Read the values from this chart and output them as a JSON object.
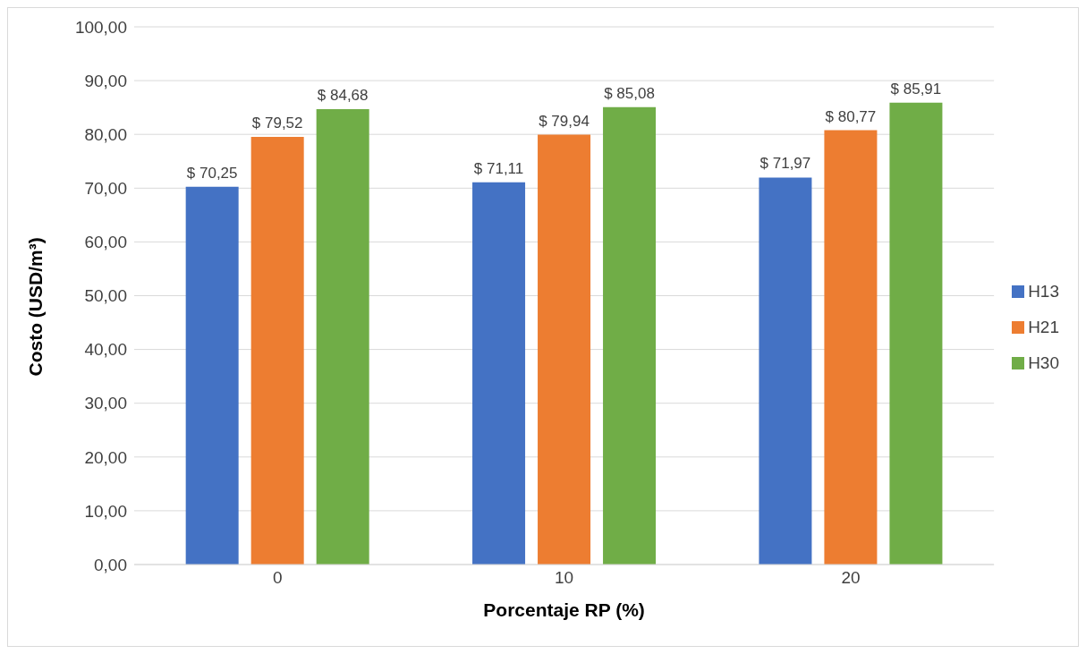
{
  "chart_data": {
    "type": "bar",
    "xlabel": "Porcentaje RP (%)",
    "ylabel": "Costo  (USD/m³)",
    "categories": [
      "0",
      "10",
      "20"
    ],
    "series": [
      {
        "name": "H13",
        "color": "#4472c4",
        "values": [
          70.25,
          71.11,
          71.97
        ],
        "value_labels": [
          "$ 70,25",
          "$ 71,11",
          "$ 71,97"
        ]
      },
      {
        "name": "H21",
        "color": "#ed7d31",
        "values": [
          79.52,
          79.94,
          80.77
        ],
        "value_labels": [
          "$ 79,52",
          "$ 79,94",
          "$ 80,77"
        ]
      },
      {
        "name": "H30",
        "color": "#70ad47",
        "values": [
          84.68,
          85.08,
          85.91
        ],
        "value_labels": [
          "$ 84,68",
          "$ 85,08",
          "$ 85,91"
        ]
      }
    ],
    "ylim": [
      0,
      100
    ],
    "yticks": [
      {
        "value": 0,
        "label": "0,00"
      },
      {
        "value": 10,
        "label": "10,00"
      },
      {
        "value": 20,
        "label": "20,00"
      },
      {
        "value": 30,
        "label": "30,00"
      },
      {
        "value": 40,
        "label": "40,00"
      },
      {
        "value": 50,
        "label": "50,00"
      },
      {
        "value": 60,
        "label": "60,00"
      },
      {
        "value": 70,
        "label": "70,00"
      },
      {
        "value": 80,
        "label": "80,00"
      },
      {
        "value": 90,
        "label": "90,00"
      },
      {
        "value": 100,
        "label": "100,00"
      }
    ],
    "grid": "y",
    "legend": "right"
  }
}
